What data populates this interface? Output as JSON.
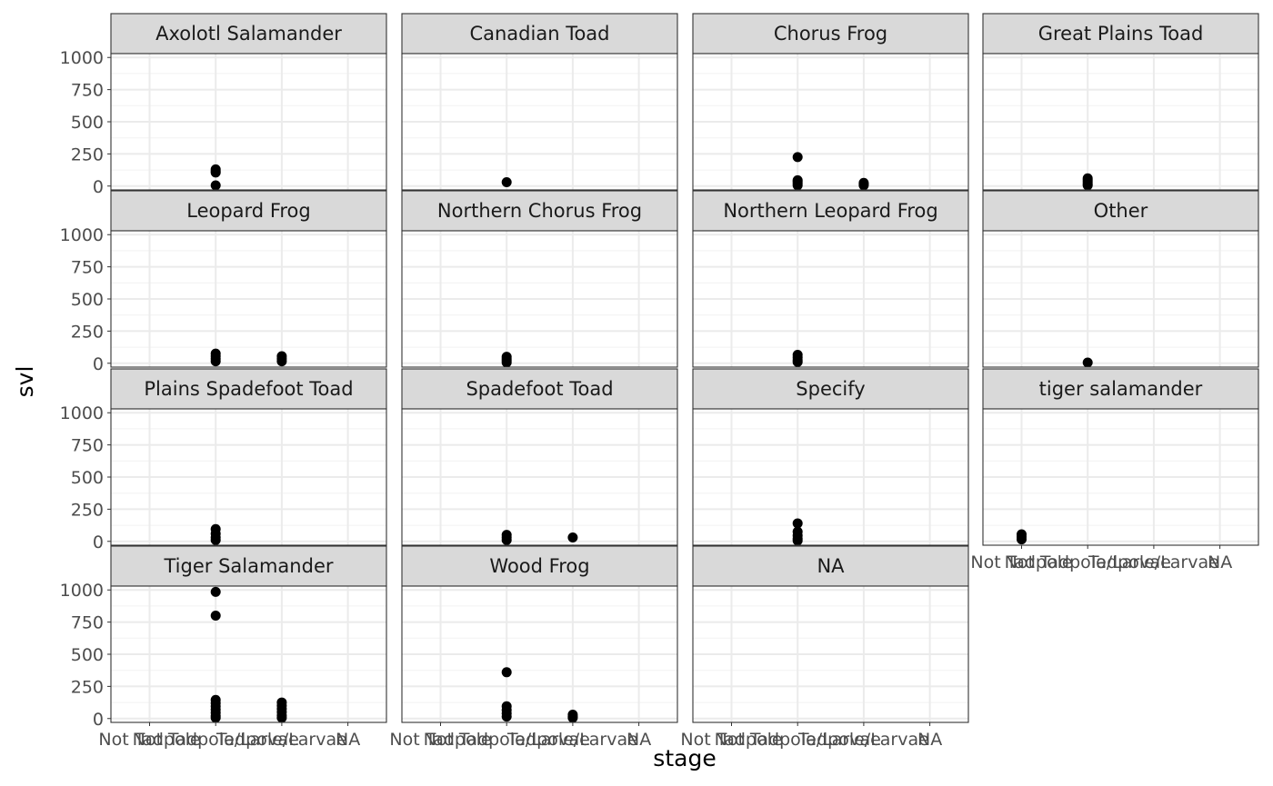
{
  "chart_data": {
    "type": "scatter",
    "facet_by": "species",
    "facet_layout": {
      "ncol": 4,
      "nrow": 4
    },
    "xlabel": "stage",
    "ylabel": "svl",
    "x_categories": [
      "Not Tadpole",
      "Not Tadpole/Larvae",
      "Tadpole/Larvae",
      "NA"
    ],
    "y_ticks": [
      0,
      250,
      500,
      750,
      1000
    ],
    "ylim": [
      -30,
      1030
    ],
    "grid": true,
    "legend": "none",
    "point_color": "#000000",
    "panels": [
      {
        "label": "Axolotl Salamander",
        "points": [
          [
            "Not Tadpole/Larvae",
            130
          ],
          [
            "Not Tadpole/Larvae",
            115
          ],
          [
            "Not Tadpole/Larvae",
            105
          ],
          [
            "Not Tadpole/Larvae",
            5
          ]
        ]
      },
      {
        "label": "Canadian Toad",
        "points": [
          [
            "Not Tadpole/Larvae",
            30
          ]
        ]
      },
      {
        "label": "Chorus Frog",
        "points": [
          [
            "Not Tadpole/Larvae",
            225
          ],
          [
            "Not Tadpole/Larvae",
            45
          ],
          [
            "Not Tadpole/Larvae",
            35
          ],
          [
            "Not Tadpole/Larvae",
            20
          ],
          [
            "Not Tadpole/Larvae",
            5
          ],
          [
            "Tadpole/Larvae",
            25
          ],
          [
            "Tadpole/Larvae",
            15
          ],
          [
            "Tadpole/Larvae",
            5
          ]
        ]
      },
      {
        "label": "Great Plains Toad",
        "points": [
          [
            "Not Tadpole/Larvae",
            60
          ],
          [
            "Not Tadpole/Larvae",
            45
          ],
          [
            "Not Tadpole/Larvae",
            30
          ],
          [
            "Not Tadpole/Larvae",
            15
          ],
          [
            "Not Tadpole/Larvae",
            5
          ]
        ]
      },
      {
        "label": "Leopard Frog",
        "points": [
          [
            "Not Tadpole/Larvae",
            75
          ],
          [
            "Not Tadpole/Larvae",
            55
          ],
          [
            "Not Tadpole/Larvae",
            35
          ],
          [
            "Not Tadpole/Larvae",
            15
          ],
          [
            "Tadpole/Larvae",
            55
          ],
          [
            "Tadpole/Larvae",
            35
          ],
          [
            "Tadpole/Larvae",
            15
          ]
        ]
      },
      {
        "label": "Northern Chorus Frog",
        "points": [
          [
            "Not Tadpole/Larvae",
            50
          ],
          [
            "Not Tadpole/Larvae",
            35
          ],
          [
            "Not Tadpole/Larvae",
            20
          ],
          [
            "Not Tadpole/Larvae",
            5
          ]
        ]
      },
      {
        "label": "Northern Leopard Frog",
        "points": [
          [
            "Not Tadpole/Larvae",
            65
          ],
          [
            "Not Tadpole/Larvae",
            45
          ],
          [
            "Not Tadpole/Larvae",
            25
          ],
          [
            "Not Tadpole/Larvae",
            10
          ]
        ]
      },
      {
        "label": "Other",
        "points": [
          [
            "Not Tadpole/Larvae",
            5
          ]
        ]
      },
      {
        "label": "Plains Spadefoot Toad",
        "points": [
          [
            "Not Tadpole/Larvae",
            95
          ],
          [
            "Not Tadpole/Larvae",
            60
          ],
          [
            "Not Tadpole/Larvae",
            30
          ],
          [
            "Not Tadpole/Larvae",
            10
          ]
        ]
      },
      {
        "label": "Spadefoot Toad",
        "points": [
          [
            "Not Tadpole/Larvae",
            50
          ],
          [
            "Not Tadpole/Larvae",
            30
          ],
          [
            "Not Tadpole/Larvae",
            10
          ],
          [
            "Tadpole/Larvae",
            30
          ]
        ]
      },
      {
        "label": "Specify",
        "points": [
          [
            "Not Tadpole/Larvae",
            140
          ],
          [
            "Not Tadpole/Larvae",
            75
          ],
          [
            "Not Tadpole/Larvae",
            45
          ],
          [
            "Not Tadpole/Larvae",
            20
          ],
          [
            "Not Tadpole/Larvae",
            5
          ]
        ]
      },
      {
        "label": "tiger salamander",
        "points": [
          [
            "Not Tadpole",
            55
          ],
          [
            "Not Tadpole",
            35
          ],
          [
            "Not Tadpole",
            15
          ]
        ]
      },
      {
        "label": "Tiger Salamander",
        "points": [
          [
            "Not Tadpole/Larvae",
            985
          ],
          [
            "Not Tadpole/Larvae",
            800
          ],
          [
            "Not Tadpole/Larvae",
            145
          ],
          [
            "Not Tadpole/Larvae",
            120
          ],
          [
            "Not Tadpole/Larvae",
            95
          ],
          [
            "Not Tadpole/Larvae",
            70
          ],
          [
            "Not Tadpole/Larvae",
            45
          ],
          [
            "Not Tadpole/Larvae",
            20
          ],
          [
            "Not Tadpole/Larvae",
            5
          ],
          [
            "Tadpole/Larvae",
            125
          ],
          [
            "Tadpole/Larvae",
            100
          ],
          [
            "Tadpole/Larvae",
            75
          ],
          [
            "Tadpole/Larvae",
            50
          ],
          [
            "Tadpole/Larvae",
            25
          ],
          [
            "Tadpole/Larvae",
            5
          ]
        ]
      },
      {
        "label": "Wood Frog",
        "points": [
          [
            "Not Tadpole/Larvae",
            360
          ],
          [
            "Not Tadpole/Larvae",
            95
          ],
          [
            "Not Tadpole/Larvae",
            65
          ],
          [
            "Not Tadpole/Larvae",
            40
          ],
          [
            "Not Tadpole/Larvae",
            15
          ],
          [
            "Tadpole/Larvae",
            30
          ],
          [
            "Tadpole/Larvae",
            15
          ],
          [
            "Tadpole/Larvae",
            5
          ]
        ]
      },
      {
        "label": "NA",
        "points": []
      }
    ]
  }
}
